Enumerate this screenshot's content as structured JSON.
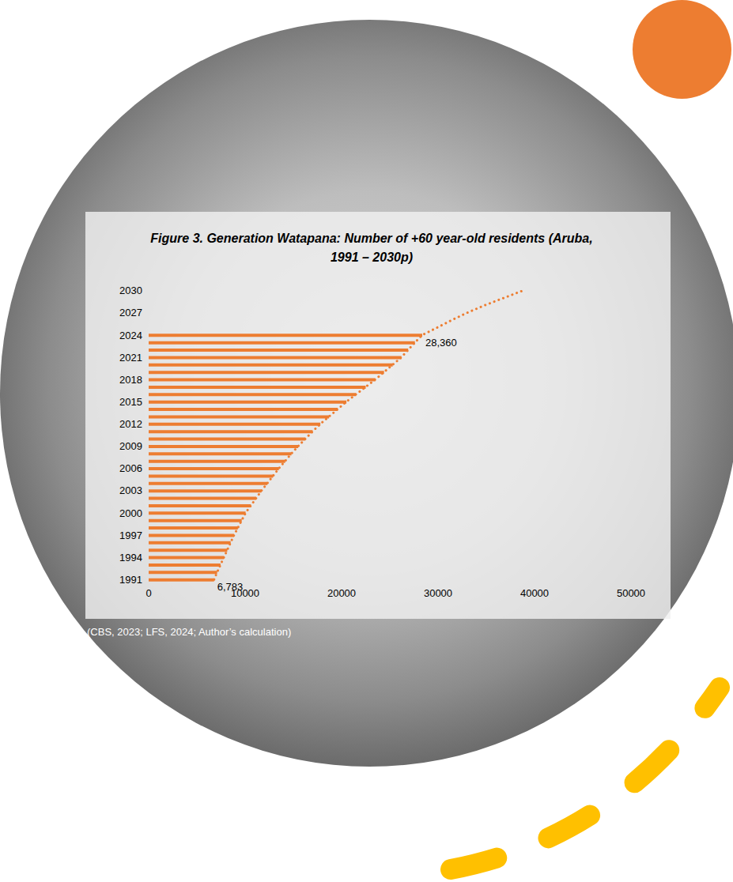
{
  "chart_data": {
    "type": "bar",
    "title": "Figure 3. Generation Watapana: Number of +60 year-old residents (Aruba, 1991 – 2030p)",
    "source": "(CBS, 2023; LFS, 2024; Author’s calculation)",
    "orientation": "horizontal",
    "categories": [
      "1991",
      null,
      null,
      "1994",
      null,
      null,
      "1997",
      null,
      null,
      "2000",
      null,
      null,
      "2003",
      null,
      null,
      "2006",
      null,
      null,
      "2009",
      null,
      null,
      "2012",
      null,
      null,
      "2015",
      null,
      null,
      "2018",
      null,
      null,
      "2021",
      null,
      null,
      "2024",
      null,
      null,
      "2027",
      null,
      null,
      "2030"
    ],
    "series": [
      {
        "type": "bar",
        "color": "#ed7d31",
        "values": [
          6783,
          7100,
          7450,
          7800,
          8150,
          8500,
          8850,
          9250,
          9650,
          10050,
          10600,
          11150,
          11700,
          12300,
          12900,
          13500,
          14150,
          14800,
          15500,
          16250,
          17000,
          17800,
          18700,
          19600,
          20500,
          21500,
          22500,
          23500,
          24400,
          25300,
          26200,
          26900,
          27600,
          28360,
          null,
          null,
          null,
          null,
          null,
          null
        ],
        "value_labels": [
          "6,783",
          null,
          null,
          null,
          null,
          null,
          null,
          null,
          null,
          null,
          null,
          null,
          null,
          null,
          null,
          null,
          null,
          null,
          null,
          null,
          null,
          null,
          null,
          null,
          null,
          null,
          null,
          null,
          null,
          null,
          null,
          null,
          null,
          "28,360",
          null,
          null,
          null,
          null,
          null,
          null
        ]
      },
      {
        "type": "line",
        "color": "#ed7d31",
        "line_style": "dotted",
        "values": [
          6783,
          7100,
          7450,
          7800,
          8150,
          8500,
          8850,
          9250,
          9650,
          10050,
          10600,
          11150,
          11700,
          12300,
          12900,
          13500,
          14150,
          14800,
          15500,
          16250,
          17000,
          17800,
          18700,
          19600,
          20500,
          21500,
          22500,
          23500,
          24400,
          25300,
          26200,
          26900,
          27600,
          28360,
          29900,
          31400,
          33000,
          34800,
          36800,
          38800
        ]
      }
    ],
    "xlim": [
      0,
      50000
    ],
    "xticks": [
      0,
      10000,
      20000,
      30000,
      40000,
      50000
    ],
    "grid": false,
    "data_labels": true
  }
}
